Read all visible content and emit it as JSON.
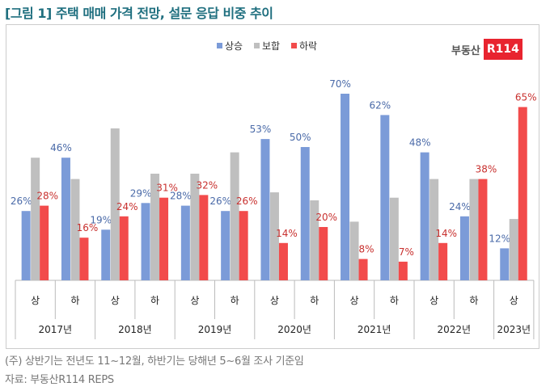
{
  "title": "[그림 1] 주택 매매 가격 전망, 설문 응답 비중 추이",
  "logo": {
    "text": "부동산",
    "badge": "R114"
  },
  "notes": [
    "(주) 상반기는 전년도 11~12월, 하반기는 당해년 5~6월 조사 기준임",
    "자료: 부동산R114 REPS"
  ],
  "chart_data": {
    "type": "bar",
    "title": "",
    "legend_position": "top-center",
    "categories": [
      "상",
      "하",
      "상",
      "하",
      "상",
      "하",
      "상",
      "하",
      "상",
      "하",
      "상",
      "하",
      "상"
    ],
    "years": [
      {
        "label": "2017년",
        "span": 2
      },
      {
        "label": "2018년",
        "span": 2
      },
      {
        "label": "2019년",
        "span": 2
      },
      {
        "label": "2020년",
        "span": 2
      },
      {
        "label": "2021년",
        "span": 2
      },
      {
        "label": "2022년",
        "span": 2
      },
      {
        "label": "2023년",
        "span": 1
      }
    ],
    "ylim": [
      0,
      100
    ],
    "series": [
      {
        "name": "상승",
        "color": "#7b9bd8",
        "label_color": "#4a6aa8",
        "labeled": true,
        "values": [
          26,
          46,
          19,
          29,
          28,
          26,
          53,
          50,
          70,
          62,
          48,
          24,
          12
        ]
      },
      {
        "name": "보합",
        "color": "#bfbfbf",
        "label_color": "#888888",
        "labeled": false,
        "values": [
          46,
          38,
          57,
          40,
          40,
          48,
          33,
          30,
          22,
          31,
          38,
          38,
          23
        ]
      },
      {
        "name": "하락",
        "color": "#f24b4b",
        "label_color": "#c8302e",
        "labeled": true,
        "values": [
          28,
          16,
          24,
          31,
          32,
          26,
          14,
          20,
          8,
          7,
          14,
          38,
          65
        ]
      }
    ]
  }
}
